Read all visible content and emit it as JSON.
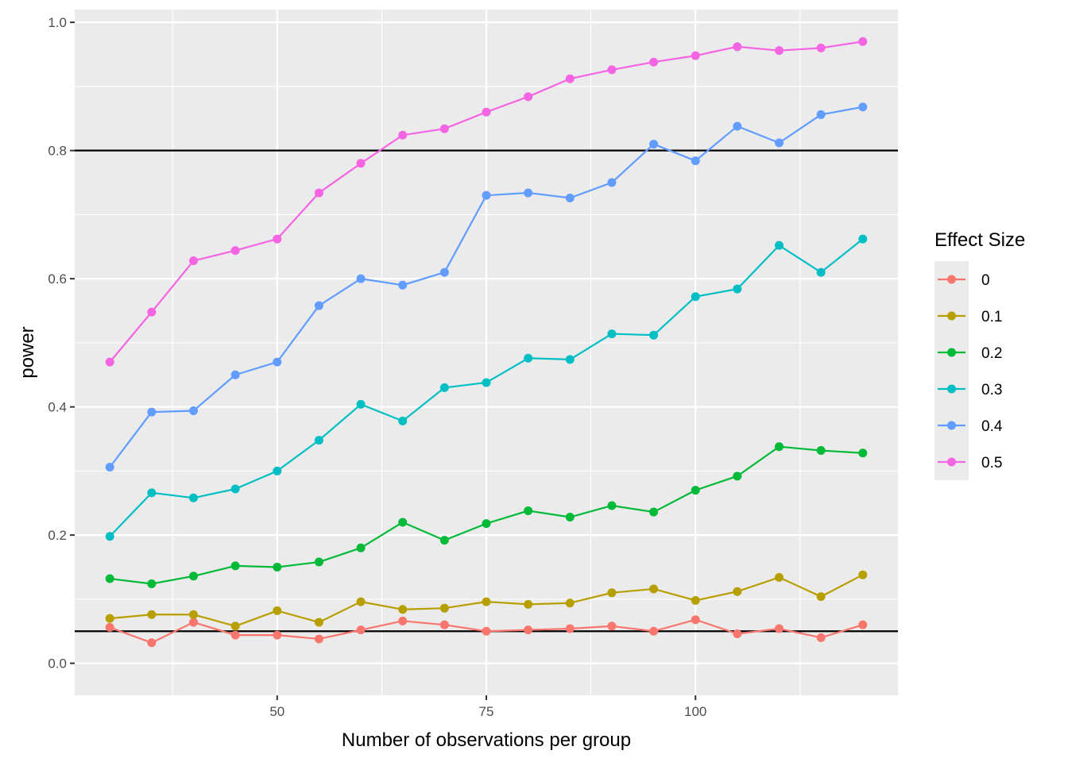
{
  "chart_data": {
    "type": "line",
    "title": "",
    "xlabel": "Number of observations per group",
    "ylabel": "power",
    "xlim": [
      25.8,
      124.2
    ],
    "ylim": [
      -0.05,
      1.02
    ],
    "x_ticks": [
      50,
      75,
      100
    ],
    "x_tick_labels": [
      "50",
      "75",
      "100"
    ],
    "y_ticks": [
      0.0,
      0.2,
      0.4,
      0.6,
      0.8,
      1.0
    ],
    "y_tick_labels": [
      "0.0",
      "0.2",
      "0.4",
      "0.6",
      "0.8",
      "1.0"
    ],
    "grid": true,
    "reference_lines_y": [
      0.05,
      0.8
    ],
    "legend": {
      "title": "Effect Size",
      "position": "right"
    },
    "x": [
      30,
      35,
      40,
      45,
      50,
      55,
      60,
      65,
      70,
      75,
      80,
      85,
      90,
      95,
      100,
      105,
      110,
      115,
      120
    ],
    "series": [
      {
        "name": "0",
        "color": "#F8766D",
        "values": [
          0.056,
          0.032,
          0.064,
          0.044,
          0.044,
          0.038,
          0.052,
          0.066,
          0.06,
          0.05,
          0.052,
          0.054,
          0.058,
          0.05,
          0.068,
          0.046,
          0.054,
          0.04,
          0.06
        ]
      },
      {
        "name": "0.1",
        "color": "#B79F00",
        "values": [
          0.07,
          0.076,
          0.076,
          0.058,
          0.082,
          0.064,
          0.096,
          0.084,
          0.086,
          0.096,
          0.092,
          0.094,
          0.11,
          0.116,
          0.098,
          0.112,
          0.134,
          0.104,
          0.138
        ]
      },
      {
        "name": "0.2",
        "color": "#00BA38",
        "values": [
          0.132,
          0.124,
          0.136,
          0.152,
          0.15,
          0.158,
          0.18,
          0.22,
          0.192,
          0.218,
          0.238,
          0.228,
          0.246,
          0.236,
          0.27,
          0.292,
          0.338,
          0.332,
          0.328
        ]
      },
      {
        "name": "0.3",
        "color": "#00BFC4",
        "values": [
          0.198,
          0.266,
          0.258,
          0.272,
          0.3,
          0.348,
          0.404,
          0.378,
          0.43,
          0.438,
          0.476,
          0.474,
          0.514,
          0.512,
          0.572,
          0.584,
          0.652,
          0.61,
          0.662
        ]
      },
      {
        "name": "0.4",
        "color": "#619CFF",
        "values": [
          0.306,
          0.392,
          0.394,
          0.45,
          0.47,
          0.558,
          0.6,
          0.59,
          0.61,
          0.73,
          0.734,
          0.726,
          0.75,
          0.81,
          0.784,
          0.838,
          0.812,
          0.856,
          0.868
        ]
      },
      {
        "name": "0.5",
        "color": "#F564E3",
        "values": [
          0.47,
          0.548,
          0.628,
          0.644,
          0.662,
          0.734,
          0.78,
          0.824,
          0.834,
          0.86,
          0.884,
          0.912,
          0.926,
          0.938,
          0.948,
          0.962,
          0.956,
          0.96,
          0.97
        ]
      }
    ]
  }
}
